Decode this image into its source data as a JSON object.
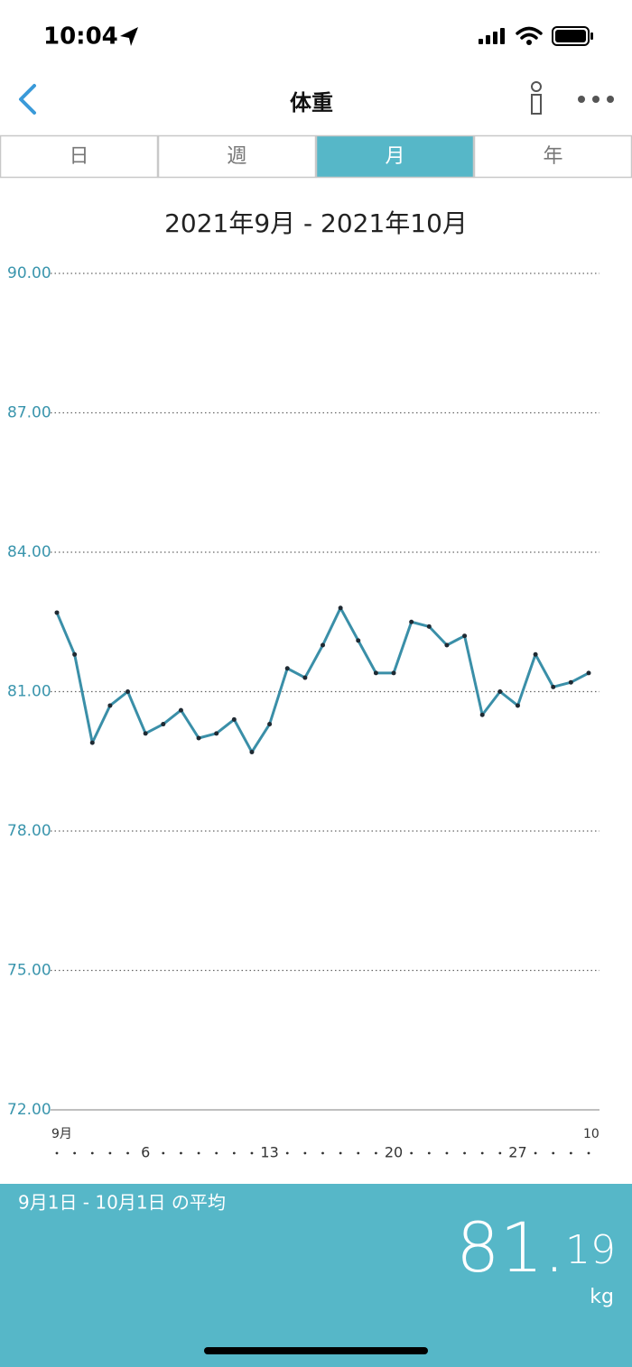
{
  "status_bar": {
    "time": "10:04"
  },
  "header": {
    "title": "体重"
  },
  "tabs": {
    "items": [
      "日",
      "週",
      "月",
      "年"
    ],
    "selected": 2
  },
  "date_range": "2021年9月 - 2021年10月",
  "chart_data": {
    "type": "line",
    "categories": [
      "9月",
      null,
      null,
      null,
      null,
      "6",
      null,
      null,
      null,
      null,
      null,
      null,
      "13",
      null,
      null,
      null,
      null,
      null,
      null,
      "20",
      null,
      null,
      null,
      null,
      null,
      null,
      "27",
      null,
      null,
      null,
      "10"
    ],
    "series": [
      {
        "color": "#3a8fa8",
        "values": [
          82.7,
          81.8,
          79.9,
          80.7,
          81.0,
          80.1,
          80.3,
          80.6,
          80.0,
          80.1,
          80.4,
          79.7,
          80.3,
          81.5,
          81.3,
          82.0,
          82.8,
          82.1,
          81.4,
          81.4,
          82.5,
          82.4,
          82.0,
          82.2,
          80.5,
          81.0,
          80.7,
          81.8,
          81.1,
          81.2,
          81.4
        ]
      }
    ],
    "ylim": [
      72,
      90
    ],
    "yticks": [
      {
        "value": 72,
        "label": "72.00"
      },
      {
        "value": 75,
        "label": "75.00"
      },
      {
        "value": 78,
        "label": "78.00"
      },
      {
        "value": 81,
        "label": "81.00"
      },
      {
        "value": 84,
        "label": "84.00"
      },
      {
        "value": 87,
        "label": "87.00"
      },
      {
        "value": 90,
        "label": "90.00"
      }
    ],
    "grid": true
  },
  "footer": {
    "caption": "9月1日 - 10月1日 の平均",
    "average_main": "81.",
    "average_decimal": "19",
    "unit": "kg"
  }
}
